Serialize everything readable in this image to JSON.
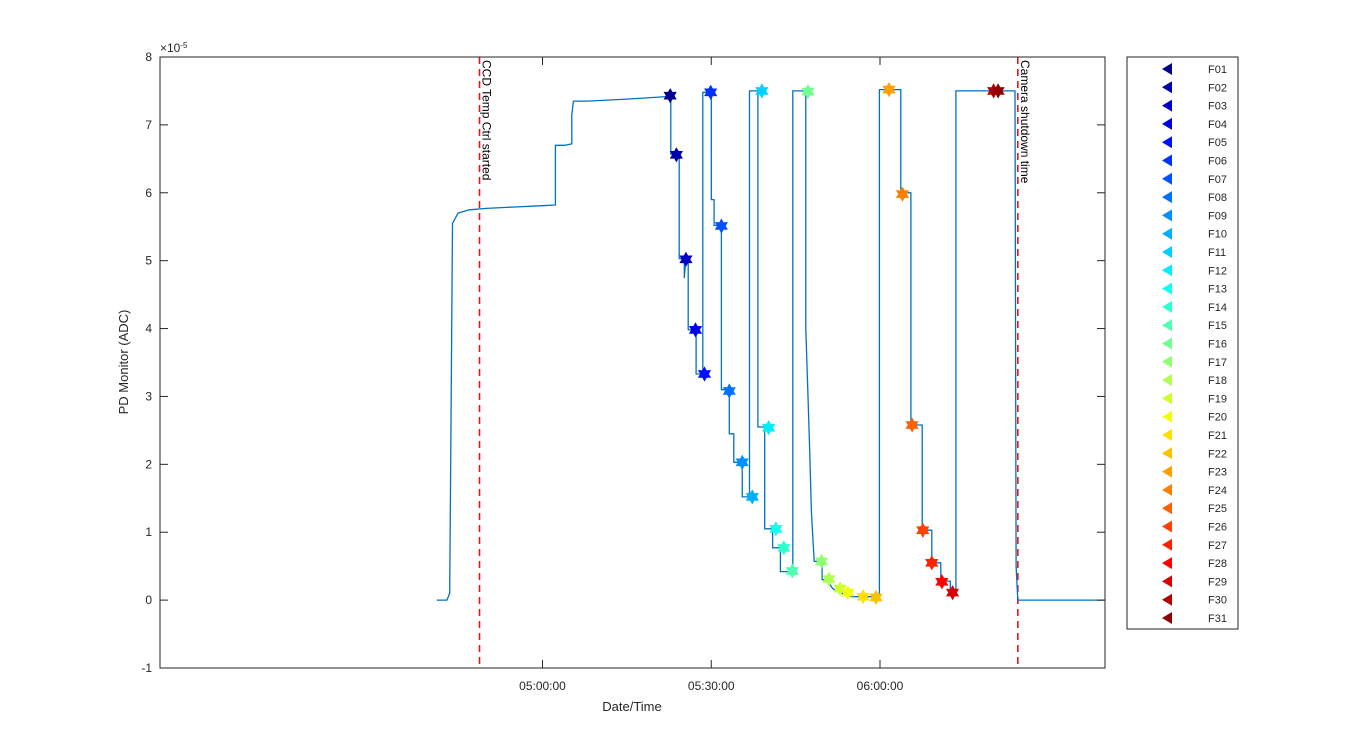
{
  "chart_data": {
    "type": "line",
    "title": "",
    "xlabel": "Date/Time",
    "ylabel": "PD Monitor (ADC)",
    "y_multiplier_label": "×10",
    "y_multiplier_exponent": "-5",
    "xlim_minutes": [
      -68,
      100
    ],
    "ylim": [
      -1,
      8
    ],
    "x_ticks": [
      {
        "label": "05:00:00",
        "minute": 0
      },
      {
        "label": "05:30:00",
        "minute": 30
      },
      {
        "label": "06:00:00",
        "minute": 60
      }
    ],
    "y_ticks": [
      -1,
      0,
      1,
      2,
      3,
      4,
      5,
      6,
      7,
      8
    ],
    "grid": false,
    "legend_position": "outside-right",
    "line_color": "#0072BD",
    "annotation_color": "#E8141B",
    "annotations": [
      {
        "label": "CCD Temp Ctrl started",
        "minute": -11.2
      },
      {
        "label": "Camera shutdown time",
        "minute": 84.5
      }
    ],
    "series_trace": [
      [
        -18.8,
        0.0
      ],
      [
        -17.0,
        0.0
      ],
      [
        -16.5,
        0.1
      ],
      [
        -16.0,
        5.55
      ],
      [
        -15.0,
        5.7
      ],
      [
        -13.0,
        5.75
      ],
      [
        -10.0,
        5.77
      ],
      [
        -5.0,
        5.79
      ],
      [
        0.0,
        5.81
      ],
      [
        2.3,
        5.82
      ],
      [
        2.3,
        6.7
      ],
      [
        4.0,
        6.7
      ],
      [
        5.2,
        6.72
      ],
      [
        5.2,
        7.15
      ],
      [
        5.5,
        7.35
      ],
      [
        8.0,
        7.35
      ],
      [
        15.0,
        7.38
      ],
      [
        22.7,
        7.42
      ],
      [
        22.8,
        7.42
      ],
      [
        22.8,
        6.57
      ],
      [
        24.3,
        6.57
      ],
      [
        24.3,
        5.03
      ],
      [
        25.2,
        5.03
      ],
      [
        25.2,
        4.75
      ],
      [
        25.5,
        5.03
      ],
      [
        25.9,
        5.03
      ],
      [
        25.9,
        3.98
      ],
      [
        27.3,
        3.98
      ],
      [
        27.3,
        3.33
      ],
      [
        28.5,
        3.33
      ],
      [
        28.5,
        7.48
      ],
      [
        30.0,
        7.48
      ],
      [
        30.0,
        5.9
      ],
      [
        30.5,
        5.9
      ],
      [
        30.5,
        5.52
      ],
      [
        31.8,
        5.52
      ],
      [
        31.8,
        3.1
      ],
      [
        33.2,
        3.1
      ],
      [
        33.2,
        2.45
      ],
      [
        34.0,
        2.45
      ],
      [
        34.0,
        2.03
      ],
      [
        35.5,
        2.03
      ],
      [
        35.5,
        1.52
      ],
      [
        36.8,
        1.52
      ],
      [
        36.8,
        7.5
      ],
      [
        38.3,
        7.5
      ],
      [
        38.3,
        2.55
      ],
      [
        39.5,
        2.55
      ],
      [
        39.5,
        1.05
      ],
      [
        40.9,
        1.05
      ],
      [
        40.9,
        0.77
      ],
      [
        42.3,
        0.77
      ],
      [
        42.3,
        0.42
      ],
      [
        44.5,
        0.42
      ],
      [
        44.5,
        7.5
      ],
      [
        46.8,
        7.5
      ],
      [
        46.8,
        4.0
      ],
      [
        47.2,
        3.0
      ],
      [
        47.5,
        2.2
      ],
      [
        47.8,
        1.3
      ],
      [
        48.3,
        0.57
      ],
      [
        49.7,
        0.57
      ],
      [
        49.7,
        0.3
      ],
      [
        50.5,
        0.3
      ],
      [
        51.6,
        0.17
      ],
      [
        52.6,
        0.12
      ],
      [
        55.0,
        0.05
      ],
      [
        58.5,
        0.05
      ],
      [
        59.3,
        0.02
      ],
      [
        59.9,
        0.05
      ],
      [
        59.9,
        7.52
      ],
      [
        63.7,
        7.52
      ],
      [
        63.7,
        6.0
      ],
      [
        65.5,
        6.0
      ],
      [
        65.5,
        2.58
      ],
      [
        67.5,
        2.58
      ],
      [
        67.5,
        1.03
      ],
      [
        69.2,
        1.03
      ],
      [
        69.2,
        0.55
      ],
      [
        70.8,
        0.55
      ],
      [
        70.8,
        0.28
      ],
      [
        72.5,
        0.28
      ],
      [
        72.5,
        0.12
      ],
      [
        73.5,
        0.1
      ],
      [
        73.5,
        7.5
      ],
      [
        84.0,
        7.5
      ],
      [
        84.2,
        0.5
      ],
      [
        84.5,
        0.0
      ],
      [
        100.0,
        0.0
      ]
    ],
    "filters": [
      {
        "name": "F01",
        "minute": 22.7,
        "value": 7.43,
        "color": "#00008F"
      },
      {
        "name": "F02",
        "minute": 23.8,
        "value": 6.56,
        "color": "#0000AA"
      },
      {
        "name": "F03",
        "minute": 25.5,
        "value": 5.02,
        "color": "#0000C8"
      },
      {
        "name": "F04",
        "minute": 27.2,
        "value": 3.98,
        "color": "#0000E6"
      },
      {
        "name": "F05",
        "minute": 28.8,
        "value": 3.33,
        "color": "#0010FF"
      },
      {
        "name": "F06",
        "minute": 29.9,
        "value": 7.48,
        "color": "#0030FF"
      },
      {
        "name": "F07",
        "minute": 31.8,
        "value": 5.51,
        "color": "#0050FF"
      },
      {
        "name": "F08",
        "minute": 33.2,
        "value": 3.08,
        "color": "#0070FF"
      },
      {
        "name": "F09",
        "minute": 35.5,
        "value": 2.03,
        "color": "#0090FF"
      },
      {
        "name": "F10",
        "minute": 37.3,
        "value": 1.52,
        "color": "#00B0FF"
      },
      {
        "name": "F11",
        "minute": 39.0,
        "value": 7.5,
        "color": "#00D0FF"
      },
      {
        "name": "F12",
        "minute": 40.2,
        "value": 2.54,
        "color": "#00EEFF"
      },
      {
        "name": "F13",
        "minute": 41.5,
        "value": 1.05,
        "color": "#10FFEE"
      },
      {
        "name": "F14",
        "minute": 42.9,
        "value": 0.77,
        "color": "#30FFD0"
      },
      {
        "name": "F15",
        "minute": 44.4,
        "value": 0.43,
        "color": "#50FFB0"
      },
      {
        "name": "F16",
        "minute": 47.2,
        "value": 7.49,
        "color": "#70FF90"
      },
      {
        "name": "F17",
        "minute": 49.6,
        "value": 0.57,
        "color": "#90FF70"
      },
      {
        "name": "F18",
        "minute": 50.9,
        "value": 0.31,
        "color": "#B0FF50"
      },
      {
        "name": "F19",
        "minute": 52.9,
        "value": 0.17,
        "color": "#D0FF30"
      },
      {
        "name": "F20",
        "minute": 54.3,
        "value": 0.11,
        "color": "#F0FF10"
      },
      {
        "name": "F21",
        "minute": 57.0,
        "value": 0.05,
        "color": "#FFE000"
      },
      {
        "name": "F22",
        "minute": 59.3,
        "value": 0.04,
        "color": "#FFC000"
      },
      {
        "name": "F23",
        "minute": 61.6,
        "value": 7.52,
        "color": "#FFA000"
      },
      {
        "name": "F24",
        "minute": 64.0,
        "value": 5.98,
        "color": "#FF8000"
      },
      {
        "name": "F25",
        "minute": 65.7,
        "value": 2.58,
        "color": "#FF6000"
      },
      {
        "name": "F26",
        "minute": 67.6,
        "value": 1.03,
        "color": "#FF4000"
      },
      {
        "name": "F27",
        "minute": 69.2,
        "value": 0.55,
        "color": "#FF2000"
      },
      {
        "name": "F28",
        "minute": 71.0,
        "value": 0.27,
        "color": "#FF0000"
      },
      {
        "name": "F29",
        "minute": 72.9,
        "value": 0.11,
        "color": "#D90000"
      },
      {
        "name": "F30",
        "minute": 80.2,
        "value": 7.5,
        "color": "#B30000"
      },
      {
        "name": "F31",
        "minute": 81.0,
        "value": 7.5,
        "color": "#8F0000"
      }
    ]
  }
}
